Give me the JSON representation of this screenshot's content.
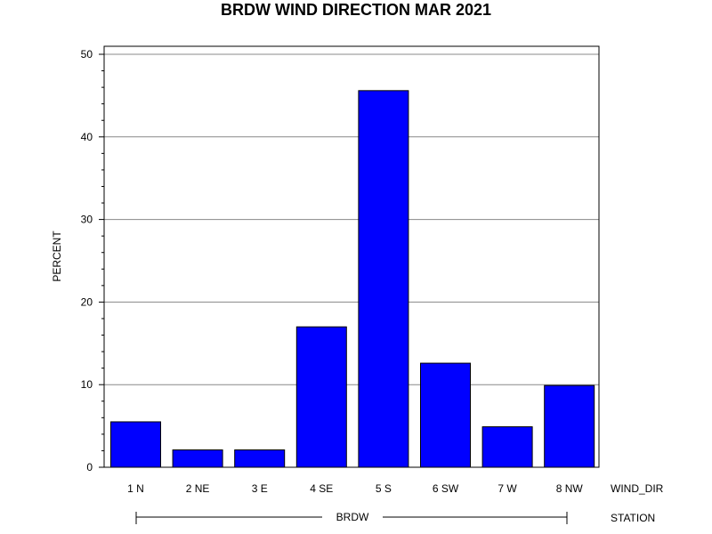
{
  "chart_data": {
    "type": "bar",
    "title": "BRDW WIND DIRECTION MAR 2021",
    "ylabel": "PERCENT",
    "xlabel": "WIND_DIR",
    "group_axis_label": "STATION",
    "group_name": "BRDW",
    "categories": [
      "1 N",
      "2 NE",
      "3 E",
      "4 SE",
      "5 S",
      "6 SW",
      "7 W",
      "8 NW"
    ],
    "values": [
      5.5,
      2.1,
      2.1,
      17.0,
      45.6,
      12.6,
      4.9,
      9.9
    ],
    "ylim": [
      0,
      50
    ],
    "yticks": [
      "0",
      "10",
      "20",
      "30",
      "40",
      "50"
    ],
    "grid": true,
    "bar_color": "#0000ff"
  }
}
